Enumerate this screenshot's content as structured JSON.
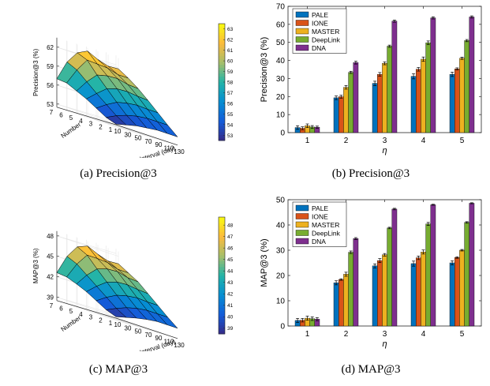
{
  "captions": [
    "(a) Precision@3",
    "(b) Precision@3",
    "(c) MAP@3",
    "(d) MAP@3"
  ],
  "chart_data": [
    {
      "type": "heatmap",
      "style": "3d-surface",
      "zlabel": "Precision@3 (%)",
      "xlabel": "Interval (day)",
      "ylabel": "Number",
      "x_ticks": [
        "10",
        "30",
        "50",
        "70",
        "90",
        "110",
        "130"
      ],
      "y_ticks": [
        "1",
        "2",
        "3",
        "4",
        "5",
        "6",
        "7"
      ],
      "z_ticks": [
        "53",
        "56",
        "59",
        "62"
      ],
      "colorbar_ticks": [
        "53",
        "54",
        "55",
        "56",
        "57",
        "58",
        "59",
        "60",
        "61",
        "62",
        "63"
      ],
      "zlim": [
        52.5,
        63.5
      ],
      "values": [
        [
          52.6,
          53.0,
          53.4,
          53.6,
          53.8,
          53.8,
          53.8
        ],
        [
          53.2,
          54.0,
          54.6,
          55.0,
          55.2,
          55.2,
          55.2
        ],
        [
          54.2,
          55.3,
          56.2,
          56.6,
          56.8,
          56.7,
          56.7
        ],
        [
          55.2,
          56.6,
          57.9,
          58.4,
          58.5,
          58.3,
          58.2
        ],
        [
          56.0,
          58.0,
          59.6,
          60.0,
          60.1,
          59.7,
          59.6
        ],
        [
          56.8,
          59.4,
          61.5,
          61.4,
          61.3,
          60.8,
          60.8
        ],
        [
          57.0,
          60.2,
          62.2,
          63.0,
          62.2,
          61.7,
          61.8
        ]
      ]
    },
    {
      "type": "bar",
      "ylabel": "Precision@3 (%)",
      "xlabel": "η",
      "categories": [
        "1",
        "2",
        "3",
        "4",
        "5"
      ],
      "ylim": [
        0,
        70
      ],
      "yticks": [
        0,
        10,
        20,
        30,
        40,
        50,
        60,
        70
      ],
      "legend": "top-left",
      "series": [
        {
          "name": "PALE",
          "color": "#0072BD",
          "values": [
            2.8,
            19.3,
            27.3,
            31.2,
            32.3
          ],
          "err": [
            1.0,
            1.0,
            1.2,
            1.4,
            1.2
          ]
        },
        {
          "name": "IONE",
          "color": "#D95319",
          "values": [
            2.4,
            19.9,
            32.3,
            35.1,
            35.3
          ],
          "err": [
            0.8,
            0.8,
            1.0,
            1.0,
            0.6
          ]
        },
        {
          "name": "MASTER",
          "color": "#EDB120",
          "values": [
            3.8,
            25.1,
            38.4,
            40.7,
            41.2
          ],
          "err": [
            1.0,
            1.0,
            0.8,
            1.2,
            0.6
          ]
        },
        {
          "name": "DeepLink",
          "color": "#77AC30",
          "values": [
            3.1,
            33.4,
            47.9,
            49.8,
            51.0
          ],
          "err": [
            0.8,
            0.6,
            0.6,
            1.0,
            0.6
          ]
        },
        {
          "name": "DNA",
          "color": "#7E2F8E",
          "values": [
            3.0,
            38.8,
            61.8,
            63.6,
            64.1
          ],
          "err": [
            0.6,
            0.8,
            0.6,
            0.6,
            0.6
          ]
        }
      ]
    },
    {
      "type": "heatmap",
      "style": "3d-surface",
      "zlabel": "MAP@3 (%)",
      "xlabel": "Interval (day)",
      "ylabel": "Number",
      "x_ticks": [
        "10",
        "30",
        "50",
        "70",
        "90",
        "110",
        "130"
      ],
      "y_ticks": [
        "1",
        "2",
        "3",
        "4",
        "5",
        "6",
        "7"
      ],
      "z_ticks": [
        "39",
        "42",
        "45",
        "48"
      ],
      "colorbar_ticks": [
        "39",
        "40",
        "41",
        "42",
        "43",
        "44",
        "45",
        "46",
        "47",
        "48"
      ],
      "zlim": [
        38.5,
        48.7
      ],
      "values": [
        [
          38.7,
          39.1,
          39.5,
          39.8,
          40.0,
          40.0,
          40.0
        ],
        [
          39.3,
          40.0,
          40.6,
          41.0,
          41.2,
          41.2,
          41.2
        ],
        [
          40.2,
          41.2,
          42.0,
          42.4,
          42.6,
          42.5,
          42.5
        ],
        [
          41.1,
          42.4,
          43.5,
          44.0,
          44.1,
          43.9,
          43.8
        ],
        [
          41.8,
          43.6,
          45.0,
          45.5,
          45.6,
          45.2,
          45.1
        ],
        [
          42.4,
          44.8,
          46.6,
          46.6,
          46.5,
          46.0,
          46.0
        ],
        [
          42.6,
          45.5,
          47.4,
          48.0,
          47.3,
          46.8,
          46.9
        ]
      ]
    },
    {
      "type": "bar",
      "ylabel": "MAP@3 (%)",
      "xlabel": "η",
      "categories": [
        "1",
        "2",
        "3",
        "4",
        "5"
      ],
      "ylim": [
        0,
        50
      ],
      "yticks": [
        0,
        10,
        20,
        30,
        40,
        50
      ],
      "legend": "top-left",
      "series": [
        {
          "name": "PALE",
          "color": "#0072BD",
          "values": [
            2.2,
            17.1,
            23.8,
            24.7,
            25.0
          ],
          "err": [
            0.8,
            0.8,
            0.8,
            1.0,
            0.8
          ]
        },
        {
          "name": "IONE",
          "color": "#D95319",
          "values": [
            2.3,
            18.4,
            25.9,
            27.0,
            27.1
          ],
          "err": [
            0.7,
            0.3,
            0.8,
            0.7,
            0.3
          ]
        },
        {
          "name": "MASTER",
          "color": "#EDB120",
          "values": [
            3.1,
            20.5,
            28.2,
            29.3,
            30.0
          ],
          "err": [
            0.8,
            0.8,
            0.5,
            0.8,
            0.3
          ]
        },
        {
          "name": "DeepLink",
          "color": "#77AC30",
          "values": [
            2.9,
            29.2,
            38.8,
            40.4,
            41.0
          ],
          "err": [
            0.7,
            0.5,
            0.3,
            0.6,
            0.3
          ]
        },
        {
          "name": "DNA",
          "color": "#7E2F8E",
          "values": [
            2.7,
            34.6,
            46.3,
            48.0,
            48.6
          ],
          "err": [
            0.6,
            0.4,
            0.3,
            0.2,
            0.2
          ]
        }
      ]
    }
  ]
}
